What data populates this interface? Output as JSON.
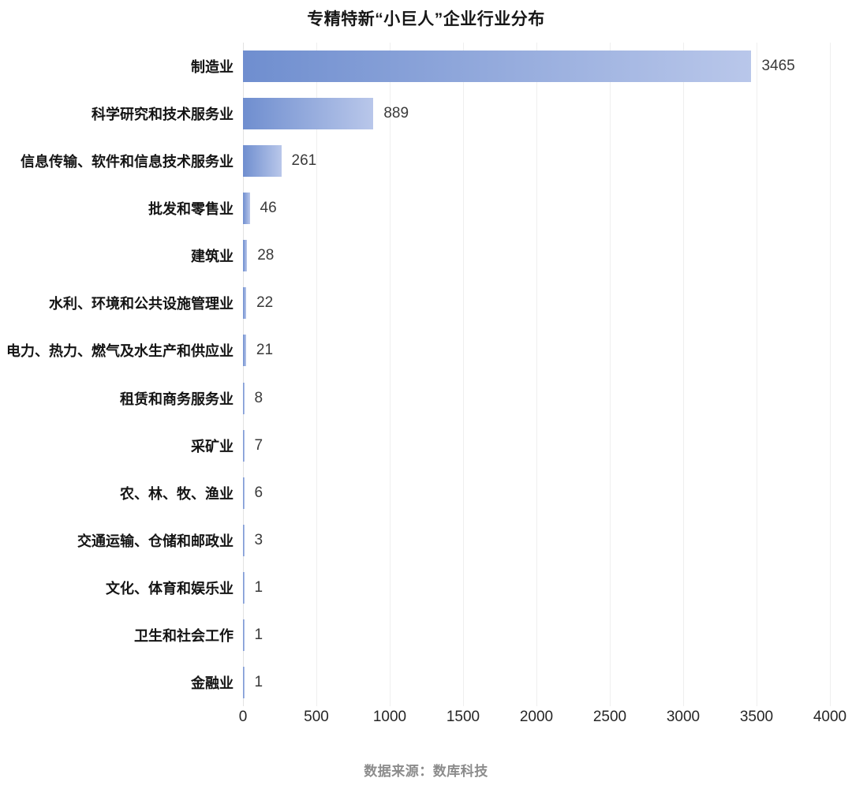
{
  "title": "专精特新“小巨人”企业行业分布",
  "footer": {
    "source_label": "数据来源：数库科技"
  },
  "colors": {
    "bar_gradient_start": "#6f8ecf",
    "bar_gradient_end": "#b9c7ea",
    "gridline": "#efefef",
    "zero_line": "#e2e2e2",
    "title_text": "#161616",
    "category_text": "#141414",
    "value_text": "#3a3a3a",
    "tick_text": "#262626",
    "source_text": "#8c8c8c",
    "background": "#ffffff"
  },
  "chart_data": {
    "type": "bar",
    "orientation": "horizontal",
    "title": "专精特新“小巨人”企业行业分布",
    "xlabel": "",
    "ylabel": "",
    "categories": [
      "制造业",
      "科学研究和技术服务业",
      "信息传输、软件和信息技术服务业",
      "批发和零售业",
      "建筑业",
      "水利、环境和公共设施管理业",
      "电力、热力、燃气及水生产和供应业",
      "租赁和商务服务业",
      "采矿业",
      "农、林、牧、渔业",
      "交通运输、仓储和邮政业",
      "文化、体育和娱乐业",
      "卫生和社会工作",
      "金融业"
    ],
    "values": [
      3465,
      889,
      261,
      46,
      28,
      22,
      21,
      8,
      7,
      6,
      3,
      1,
      1,
      1
    ],
    "data_labels_shown": true,
    "xlim": [
      0,
      4000
    ],
    "xticks": [
      0,
      500,
      1000,
      1500,
      2000,
      2500,
      3000,
      3500,
      4000
    ],
    "grid": "vertical",
    "legend": "none",
    "source": "数据来源：数库科技"
  }
}
